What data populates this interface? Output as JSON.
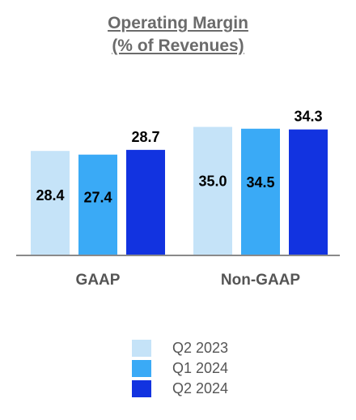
{
  "chart_data": {
    "type": "bar",
    "title": "Operating Margin",
    "subtitle": "(% of Revenues)",
    "categories": [
      "GAAP",
      "Non-GAAP"
    ],
    "series": [
      {
        "name": "Q2 2023",
        "color": "#c5e3f8",
        "values": [
          28.4,
          35.0
        ]
      },
      {
        "name": "Q1 2024",
        "color": "#3aaaf6",
        "values": [
          27.4,
          34.5
        ]
      },
      {
        "name": "Q2 2024",
        "color": "#1233e0",
        "values": [
          28.7,
          34.3
        ]
      }
    ],
    "value_labels": [
      [
        "28.4",
        "35.0"
      ],
      [
        "27.4",
        "34.5"
      ],
      [
        "28.7",
        "34.3"
      ]
    ],
    "label_position": [
      [
        "inside",
        "inside"
      ],
      [
        "inside",
        "inside"
      ],
      [
        "above",
        "above"
      ]
    ],
    "legend_position": "bottom"
  }
}
